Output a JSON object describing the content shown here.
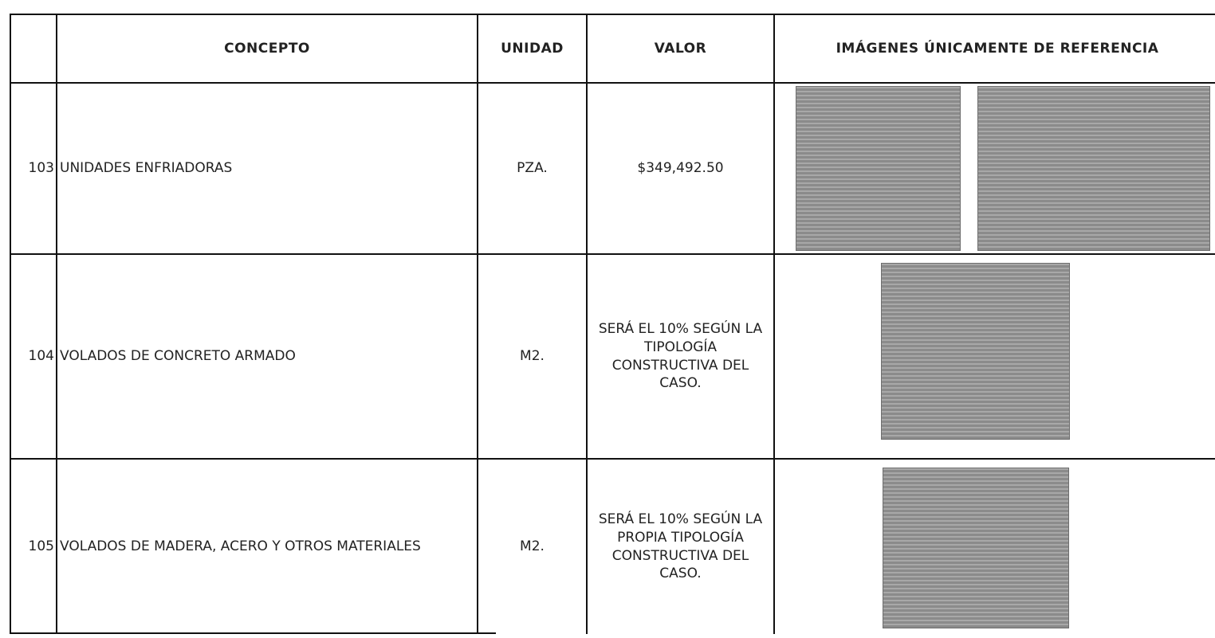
{
  "table": {
    "header": [
      "CONCEPTO",
      "UNIDAD",
      "VALOR",
      "IMÁGENES ÚNICAMENTE DE REFERENCIA"
    ],
    "rows": [
      [
        "103",
        "UNIDADES ENFRIADORAS",
        "PZA.",
        "$349,492.50"
      ],
      [
        "104",
        "VOLADOS DE CONCRETO ARMADO",
        "M2.",
        "SERÁ EL 10% SEGÚN LA TIPOLOGÍA CONSTRUCTIVA DEL CASO."
      ],
      [
        "105",
        "VOLADOS DE MADERA, ACERO Y OTROS MATERIALES",
        "M2.",
        "SERÁ EL 10% SEGÚN LA PROPIA TIPOLOGÍA CONSTRUCTIVA DEL CASO."
      ]
    ]
  }
}
